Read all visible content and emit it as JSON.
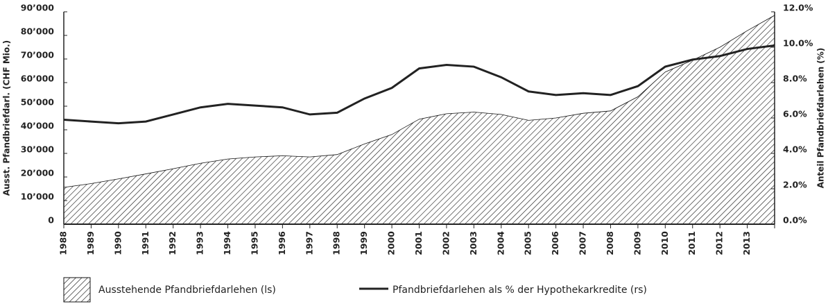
{
  "chart_data": {
    "type": "area_line",
    "categories": [
      "1988",
      "1989",
      "1990",
      "1991",
      "1992",
      "1993",
      "1994",
      "1995",
      "1996",
      "1997",
      "1998",
      "1999",
      "2000",
      "2001",
      "2002",
      "2003",
      "2004",
      "2005",
      "2006",
      "2007",
      "2008",
      "2009",
      "2010",
      "2011",
      "2012",
      "2013",
      null
    ],
    "y_label": "Ausst. Pfandbriefdarl. (CHF Mio.)",
    "y2_label": "Anteil Pfandbriefdarlehen (%)",
    "series": [
      {
        "name": "Ausstehende Pfandbriefdarlehen (ls)",
        "type": "area",
        "color": "#111",
        "values": [
          15600,
          17200,
          19200,
          21300,
          23500,
          25800,
          27600,
          28500,
          29000,
          28500,
          29500,
          34000,
          38000,
          44500,
          46800,
          47500,
          46500,
          44000,
          45000,
          47000,
          48000,
          54000,
          64500,
          69500,
          75000,
          82000,
          88500
        ]
      },
      {
        "name": "Pfandbriefdarlehen als % der Hypothekarkredite (rs)",
        "type": "line",
        "axis": "y2",
        "color": "#222",
        "values": [
          5.9,
          5.8,
          5.7,
          5.8,
          6.2,
          6.6,
          6.8,
          6.7,
          6.6,
          6.2,
          6.3,
          7.1,
          7.7,
          8.8,
          9.0,
          8.9,
          8.3,
          7.5,
          7.3,
          7.4,
          7.3,
          7.8,
          8.9,
          9.3,
          9.5,
          9.9,
          10.1
        ]
      }
    ],
    "ylim": [
      0,
      90000
    ],
    "yticks": [
      0,
      {
        "value": 10000,
        "label": "10’000"
      },
      {
        "value": 20000,
        "label": "20’000"
      },
      {
        "value": 30000,
        "label": "30’000"
      },
      {
        "value": 40000,
        "label": "40’000"
      },
      {
        "value": 50000,
        "label": "50’000"
      },
      {
        "value": 60000,
        "label": "60’000"
      },
      {
        "value": 70000,
        "label": "70’000"
      },
      {
        "value": 80000,
        "label": "80’000"
      },
      {
        "value": 90000,
        "label": "90’000"
      }
    ],
    "y2lim": [
      0,
      12
    ],
    "y2ticks": [
      {
        "value": 0,
        "label": "0.0%"
      },
      {
        "value": 2,
        "label": "2.0%"
      },
      {
        "value": 4,
        "label": "4.0%"
      },
      {
        "value": 6,
        "label": "6.0%"
      },
      {
        "value": 8,
        "label": "8.0%"
      },
      {
        "value": 10,
        "label": "10.0%"
      },
      {
        "value": 12,
        "label": "12.0%"
      }
    ]
  }
}
